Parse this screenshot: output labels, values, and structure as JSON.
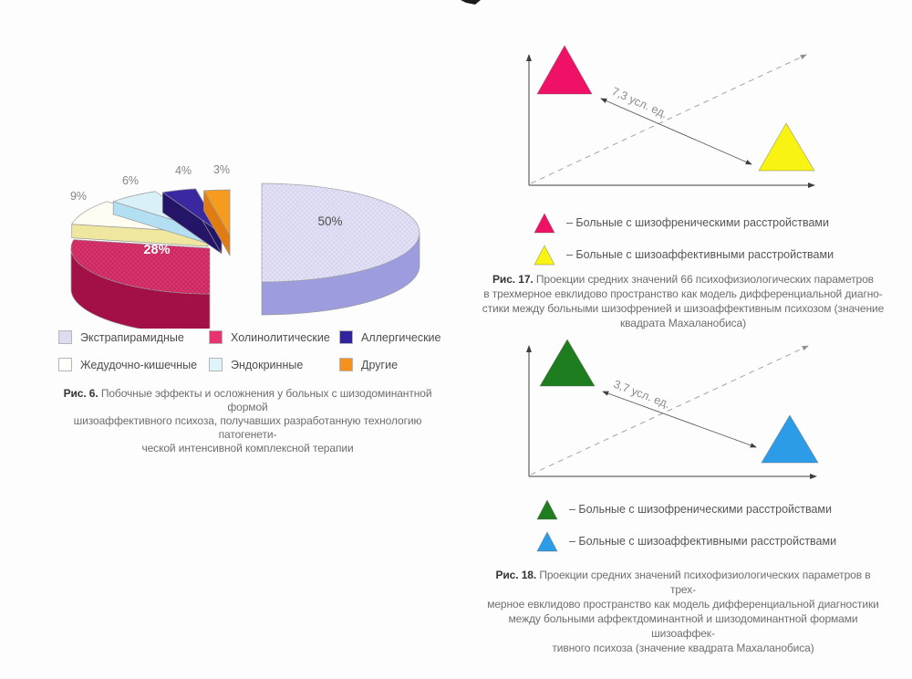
{
  "page": {
    "background": "#fdfdfd",
    "has_scan_mark_top_center": true
  },
  "chart_data": [
    {
      "type": "pie",
      "style": "3d-exploded-pie",
      "figure": "Рис. 6",
      "title": "Побочные эффекты и осложнения у больных с шизодоминантной формой шизоаффективного психоза, получавших разработанную технологию патогенетической интенсивной комплексной терапии",
      "categories": [
        "Экстрапирамидные",
        "Холинолитические",
        "Жедудочно-кишечные",
        "Эндокринные",
        "Аллергические",
        "Другие"
      ],
      "values": [
        50,
        28,
        9,
        6,
        4,
        3
      ],
      "value_labels": [
        "50%",
        "28%",
        "9%",
        "6%",
        "4%",
        "3%"
      ],
      "colors_top": [
        "#E2E2F4",
        "#D9346B",
        "#FFFDF1",
        "#DAF0F9",
        "#3A28A0",
        "#F79B1E"
      ],
      "colors_side": [
        "#9C9CDE",
        "#A31048",
        "#EFE6A0",
        "#B3DFF2",
        "#241568",
        "#E07C10"
      ],
      "legend_position": "bottom"
    },
    {
      "type": "scatter",
      "figure": "Рис. 17",
      "title": "Проекции средних значений 66 психофизиологических параметров в трехмерное евклидово пространство как модель дифференциальной диагностики между больными шизофренией и шизоаффективным психозом (значение квадрата Махаланобиса)",
      "axes": "3d-euclidean-space, unlabeled, dashed third axis",
      "series": [
        {
          "name": "Больные с шизофреническими расстройствами",
          "marker": "triangle",
          "color": "#EE1166",
          "position": "upper-left"
        },
        {
          "name": "Больные с шизоаффективными расстройствами",
          "marker": "triangle",
          "color": "#F8F312",
          "position": "lower-right"
        }
      ],
      "distance": "7,3 усл. ед."
    },
    {
      "type": "scatter",
      "figure": "Рис. 18",
      "title": "Проекции средних значений психофизиологических параметров в трехмерное евклидово пространство как модель дифференциальной диагностики между больными аффектдоминантной и шизодоминантной формами шизоаффективного психоза (значение квадрата Махаланобиса)",
      "axes": "3d-euclidean-space, unlabeled, dashed third axis",
      "series": [
        {
          "name": "Больные с шизофреническими расстройствами",
          "marker": "triangle",
          "color": "#1E7D1E",
          "position": "upper-left"
        },
        {
          "name": "Больные с шизоаффективными расстройствами",
          "marker": "triangle",
          "color": "#2D9CE8",
          "position": "lower-right"
        }
      ],
      "distance": "3,7 усл. ед."
    }
  ],
  "fig6": {
    "legend": [
      {
        "label": "Экстрапирамидные",
        "color": "#DCDCF0"
      },
      {
        "label": "Холинолитические",
        "color": "#E8336F"
      },
      {
        "label": "Аллергические",
        "color": "#31239B"
      },
      {
        "label": "Жедудочно-кишечные",
        "color": "#FFFFFC"
      },
      {
        "label": "Эндокринные",
        "color": "#DFF3FA"
      },
      {
        "label": "Другие",
        "color": "#F5921F"
      }
    ],
    "caption": {
      "label": "Рис. 6.",
      "lines": [
        "Побочные эффекты и осложнения у больных с шизодоминантной формой",
        "шизоаффективного психоза, получавших разработанную технологию патогенети-",
        "ческой интенсивной комплексной терапии"
      ]
    }
  },
  "fig17": {
    "distance": "7,3 усл. ед.",
    "legend": [
      {
        "label": "– Больные с шизофреническими расстройствами"
      },
      {
        "label": "– Больные с шизоаффективными расстройствами"
      }
    ],
    "caption": {
      "label": "Рис. 17.",
      "lines": [
        "Проекции средних значений 66 психофизиологических параметров",
        "в трехмерное евклидово пространство как модель дифференциальной диагно-",
        "стики между больными шизофренией и шизоаффективным психозом (значение",
        "квадрата Махаланобиса)"
      ]
    }
  },
  "fig18": {
    "distance": "3,7 усл. ед.",
    "legend": [
      {
        "label": "– Больные с шизофреническими расстройствами"
      },
      {
        "label": "– Больные с шизоаффективными расстройствами"
      }
    ],
    "caption": {
      "label": "Рис. 18.",
      "lines": [
        "Проекции средних значений психофизиологических параметров в трех-",
        "мерное евклидово пространство как модель дифференциальной диагностики",
        "между больными аффектдоминантной и шизодоминантной формами шизоаффек-",
        "тивного психоза (значение квадрата Махаланобиса)"
      ]
    }
  }
}
